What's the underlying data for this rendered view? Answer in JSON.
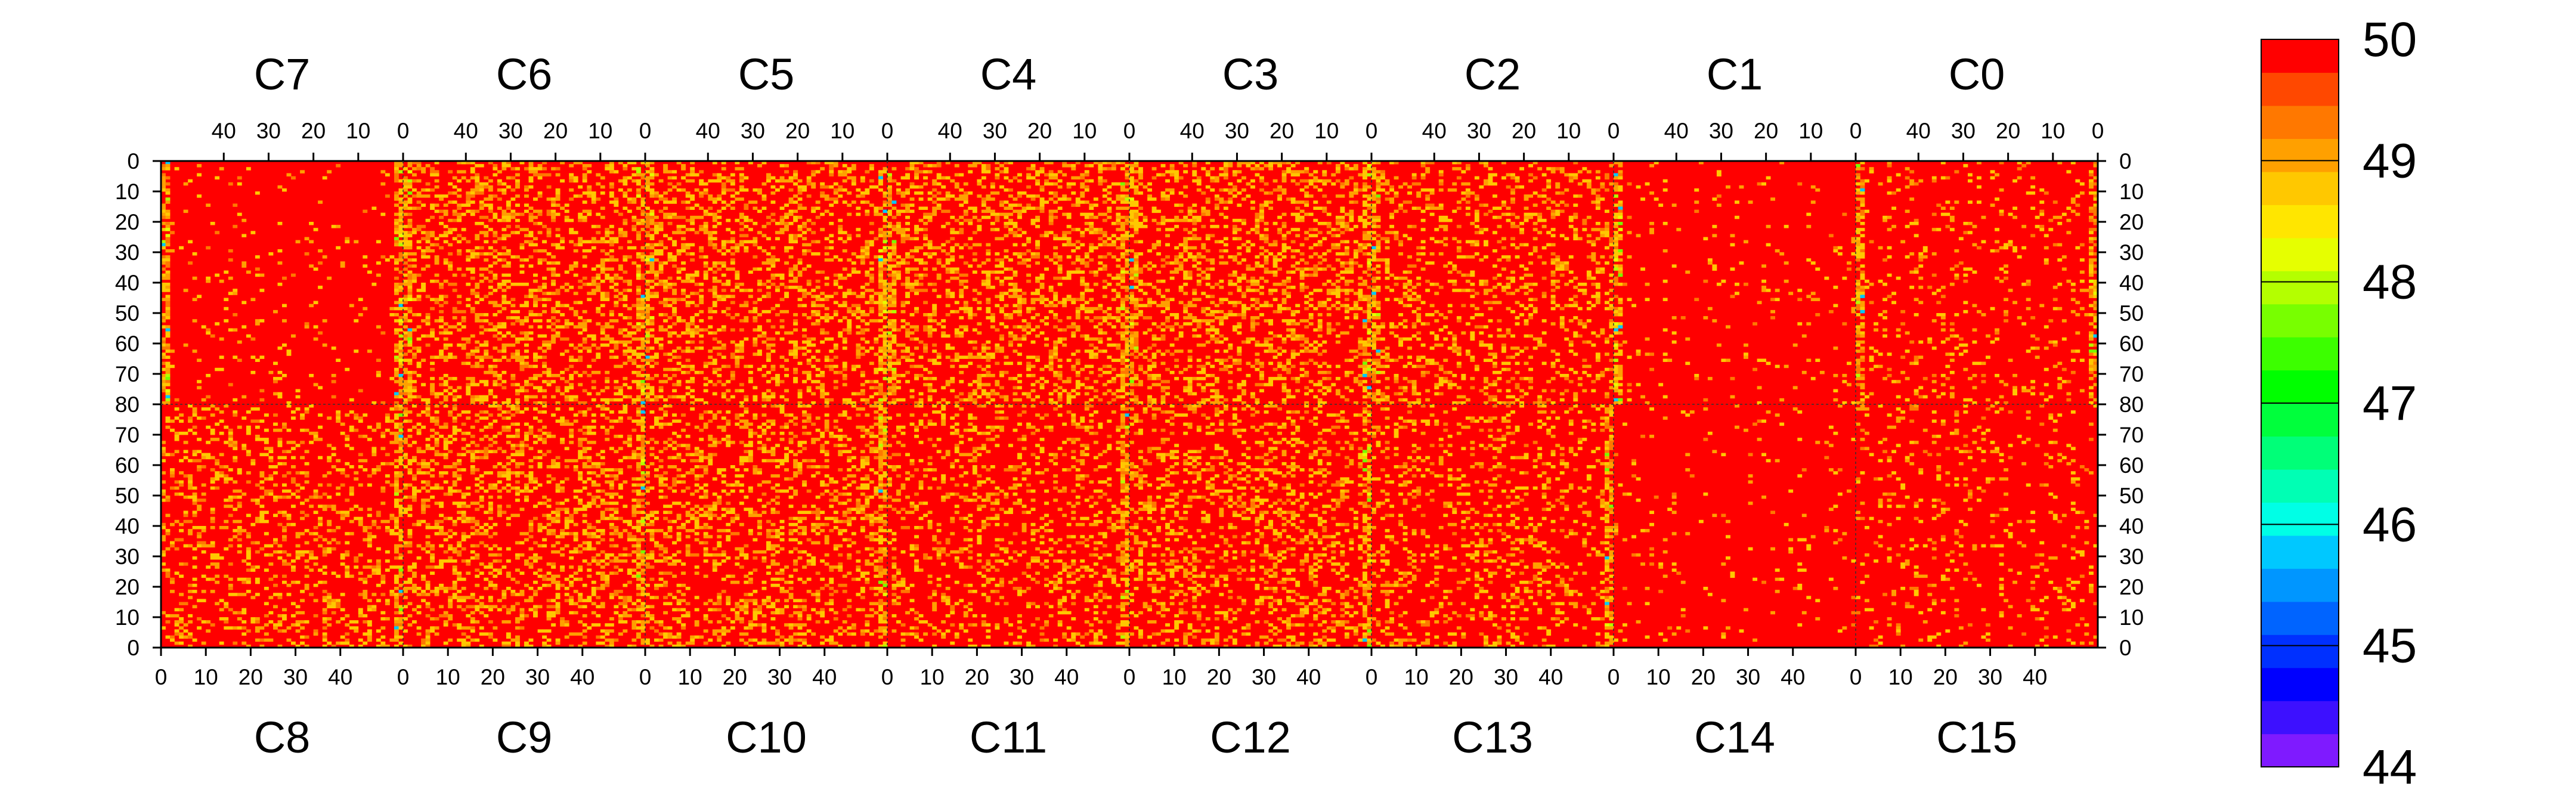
{
  "chart_data": {
    "type": "heatmap",
    "top_chips": [
      "C7",
      "C6",
      "C5",
      "C4",
      "C3",
      "C2",
      "C1",
      "C0"
    ],
    "bottom_chips": [
      "C8",
      "C9",
      "C10",
      "C11",
      "C12",
      "C13",
      "C14",
      "C15"
    ],
    "columns_per_chip": 54,
    "rows_per_half": 80,
    "x_ticks_top": [
      "40",
      "30",
      "20",
      "10",
      "0"
    ],
    "x_ticks_top_values": [
      40,
      30,
      20,
      10,
      0
    ],
    "x_ticks_bottom": [
      "0",
      "10",
      "20",
      "30",
      "40"
    ],
    "x_ticks_bottom_values": [
      0,
      10,
      20,
      30,
      40
    ],
    "y_ticks_top_half": [
      "0",
      "10",
      "20",
      "30",
      "40",
      "50",
      "60",
      "70",
      "80"
    ],
    "y_ticks_bottom_half": [
      "70",
      "60",
      "50",
      "40",
      "30",
      "20",
      "10",
      "0"
    ],
    "y_tick_values_top": [
      0,
      10,
      20,
      30,
      40,
      50,
      60,
      70,
      80
    ],
    "y_tick_values_bottom": [
      70,
      60,
      50,
      40,
      30,
      20,
      10,
      0
    ],
    "value_range": [
      44,
      50
    ],
    "colorbar": {
      "labels": [
        "50",
        "49",
        "48",
        "47",
        "46",
        "45",
        "44"
      ],
      "label_values": [
        50,
        49,
        48,
        47,
        46,
        45,
        44
      ],
      "colors": [
        "#7f1aff",
        "#3d10ff",
        "#0000ff",
        "#0030ff",
        "#0064ff",
        "#0096ff",
        "#00c8ff",
        "#00ffe6",
        "#00ffb4",
        "#00ff78",
        "#00ff3c",
        "#00ff00",
        "#3cff00",
        "#78ff00",
        "#b4ff00",
        "#e6ff00",
        "#ffe600",
        "#ffc800",
        "#ffa000",
        "#ff7800",
        "#ff4800",
        "#ff0000"
      ]
    },
    "base_value": 50,
    "column_noise_density": {
      "top": [
        0.05,
        0.3,
        0.28,
        0.3,
        0.3,
        0.22,
        0.04,
        0.1
      ],
      "bottom": [
        0.22,
        0.3,
        0.28,
        0.2,
        0.25,
        0.18,
        0.04,
        0.1
      ]
    },
    "hot_columns": {
      "top": [
        [
          0,
          53
        ],
        [
          0,
          53
        ],
        [
          0,
          53
        ],
        [
          0,
          53
        ],
        [
          0,
          53
        ],
        [
          0
        ],
        [
          0
        ],
        [
          0,
          53
        ]
      ],
      "bottom": [
        [
          53
        ],
        [
          53
        ],
        [
          53
        ],
        [
          53
        ],
        [
          53
        ],
        [
          53
        ],
        [],
        []
      ]
    }
  }
}
